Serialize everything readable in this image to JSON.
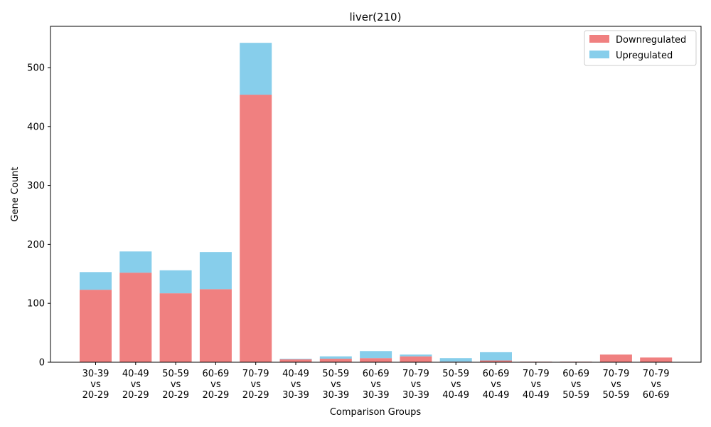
{
  "chart_data": {
    "type": "bar",
    "stacked": true,
    "title": "liver(210)",
    "xlabel": "Comparison Groups",
    "ylabel": "Gene Count",
    "ylim": [
      0,
      570
    ],
    "yticks": [
      0,
      100,
      200,
      300,
      400,
      500
    ],
    "grid": false,
    "legend_position": "top-right",
    "categories": [
      [
        "30-39",
        "vs",
        "20-29"
      ],
      [
        "40-49",
        "vs",
        "20-29"
      ],
      [
        "50-59",
        "vs",
        "20-29"
      ],
      [
        "60-69",
        "vs",
        "20-29"
      ],
      [
        "70-79",
        "vs",
        "20-29"
      ],
      [
        "40-49",
        "vs",
        "30-39"
      ],
      [
        "50-59",
        "vs",
        "30-39"
      ],
      [
        "60-69",
        "vs",
        "30-39"
      ],
      [
        "70-79",
        "vs",
        "30-39"
      ],
      [
        "50-59",
        "vs",
        "40-49"
      ],
      [
        "60-69",
        "vs",
        "40-49"
      ],
      [
        "70-79",
        "vs",
        "40-49"
      ],
      [
        "60-69",
        "vs",
        "50-59"
      ],
      [
        "70-79",
        "vs",
        "50-59"
      ],
      [
        "70-79",
        "vs",
        "60-69"
      ]
    ],
    "series": [
      {
        "name": "Downregulated",
        "color": "#f08080",
        "values": [
          123,
          152,
          117,
          124,
          454,
          5,
          6,
          7,
          10,
          1,
          3,
          1,
          1,
          13,
          8
        ]
      },
      {
        "name": "Upregulated",
        "color": "#87ceeb",
        "values": [
          30,
          36,
          39,
          63,
          88,
          1,
          4,
          12,
          3,
          6,
          14,
          0,
          0,
          0,
          0
        ]
      }
    ]
  }
}
